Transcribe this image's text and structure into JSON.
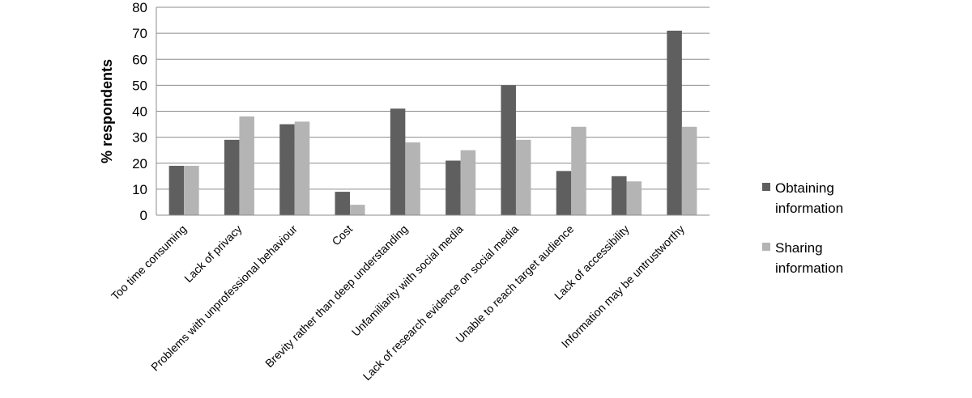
{
  "chart_data": {
    "type": "bar",
    "ylabel": "% respondents",
    "xlabel": "",
    "ylim": [
      0,
      80
    ],
    "yticks": [
      0,
      10,
      20,
      30,
      40,
      50,
      60,
      70,
      80
    ],
    "grid": true,
    "legend_position": "right",
    "categories": [
      "Too time consuming",
      "Lack of privacy",
      "Problems with unprofessional behaviour",
      "Cost",
      "Brevity rather than deep understanding",
      "Unfamiliarity with social media",
      "Lack of research evidence on social media",
      "Unable to reach target audience",
      "Lack of accessibility",
      "Information may be untrustworthy"
    ],
    "series": [
      {
        "name": "Obtaining information",
        "legend_lines": [
          "Obtaining",
          "information"
        ],
        "color": "#5f5f5f",
        "values": [
          19,
          29,
          35,
          9,
          41,
          21,
          50,
          17,
          15,
          71
        ]
      },
      {
        "name": "Sharing information",
        "legend_lines": [
          "Sharing",
          "information"
        ],
        "color": "#b4b4b4",
        "values": [
          19,
          38,
          36,
          4,
          28,
          25,
          29,
          34,
          13,
          34
        ]
      }
    ]
  }
}
